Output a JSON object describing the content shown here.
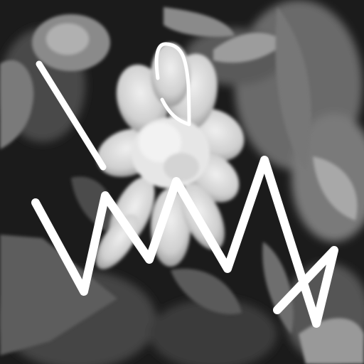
{
  "image": {
    "kind": "photograph",
    "mode": "grayscale",
    "subject": "flower-with-leaves",
    "overlay": "hand-drawn-white-zigzag-strokes"
  },
  "colors": {
    "background_dark": "#1a1a1a",
    "leaf_mid": "#5e5e5e",
    "leaf_light": "#8c8c8c",
    "petal": "#cfcfcf",
    "petal_highlight": "#ececec",
    "stroke": "#ffffff"
  }
}
